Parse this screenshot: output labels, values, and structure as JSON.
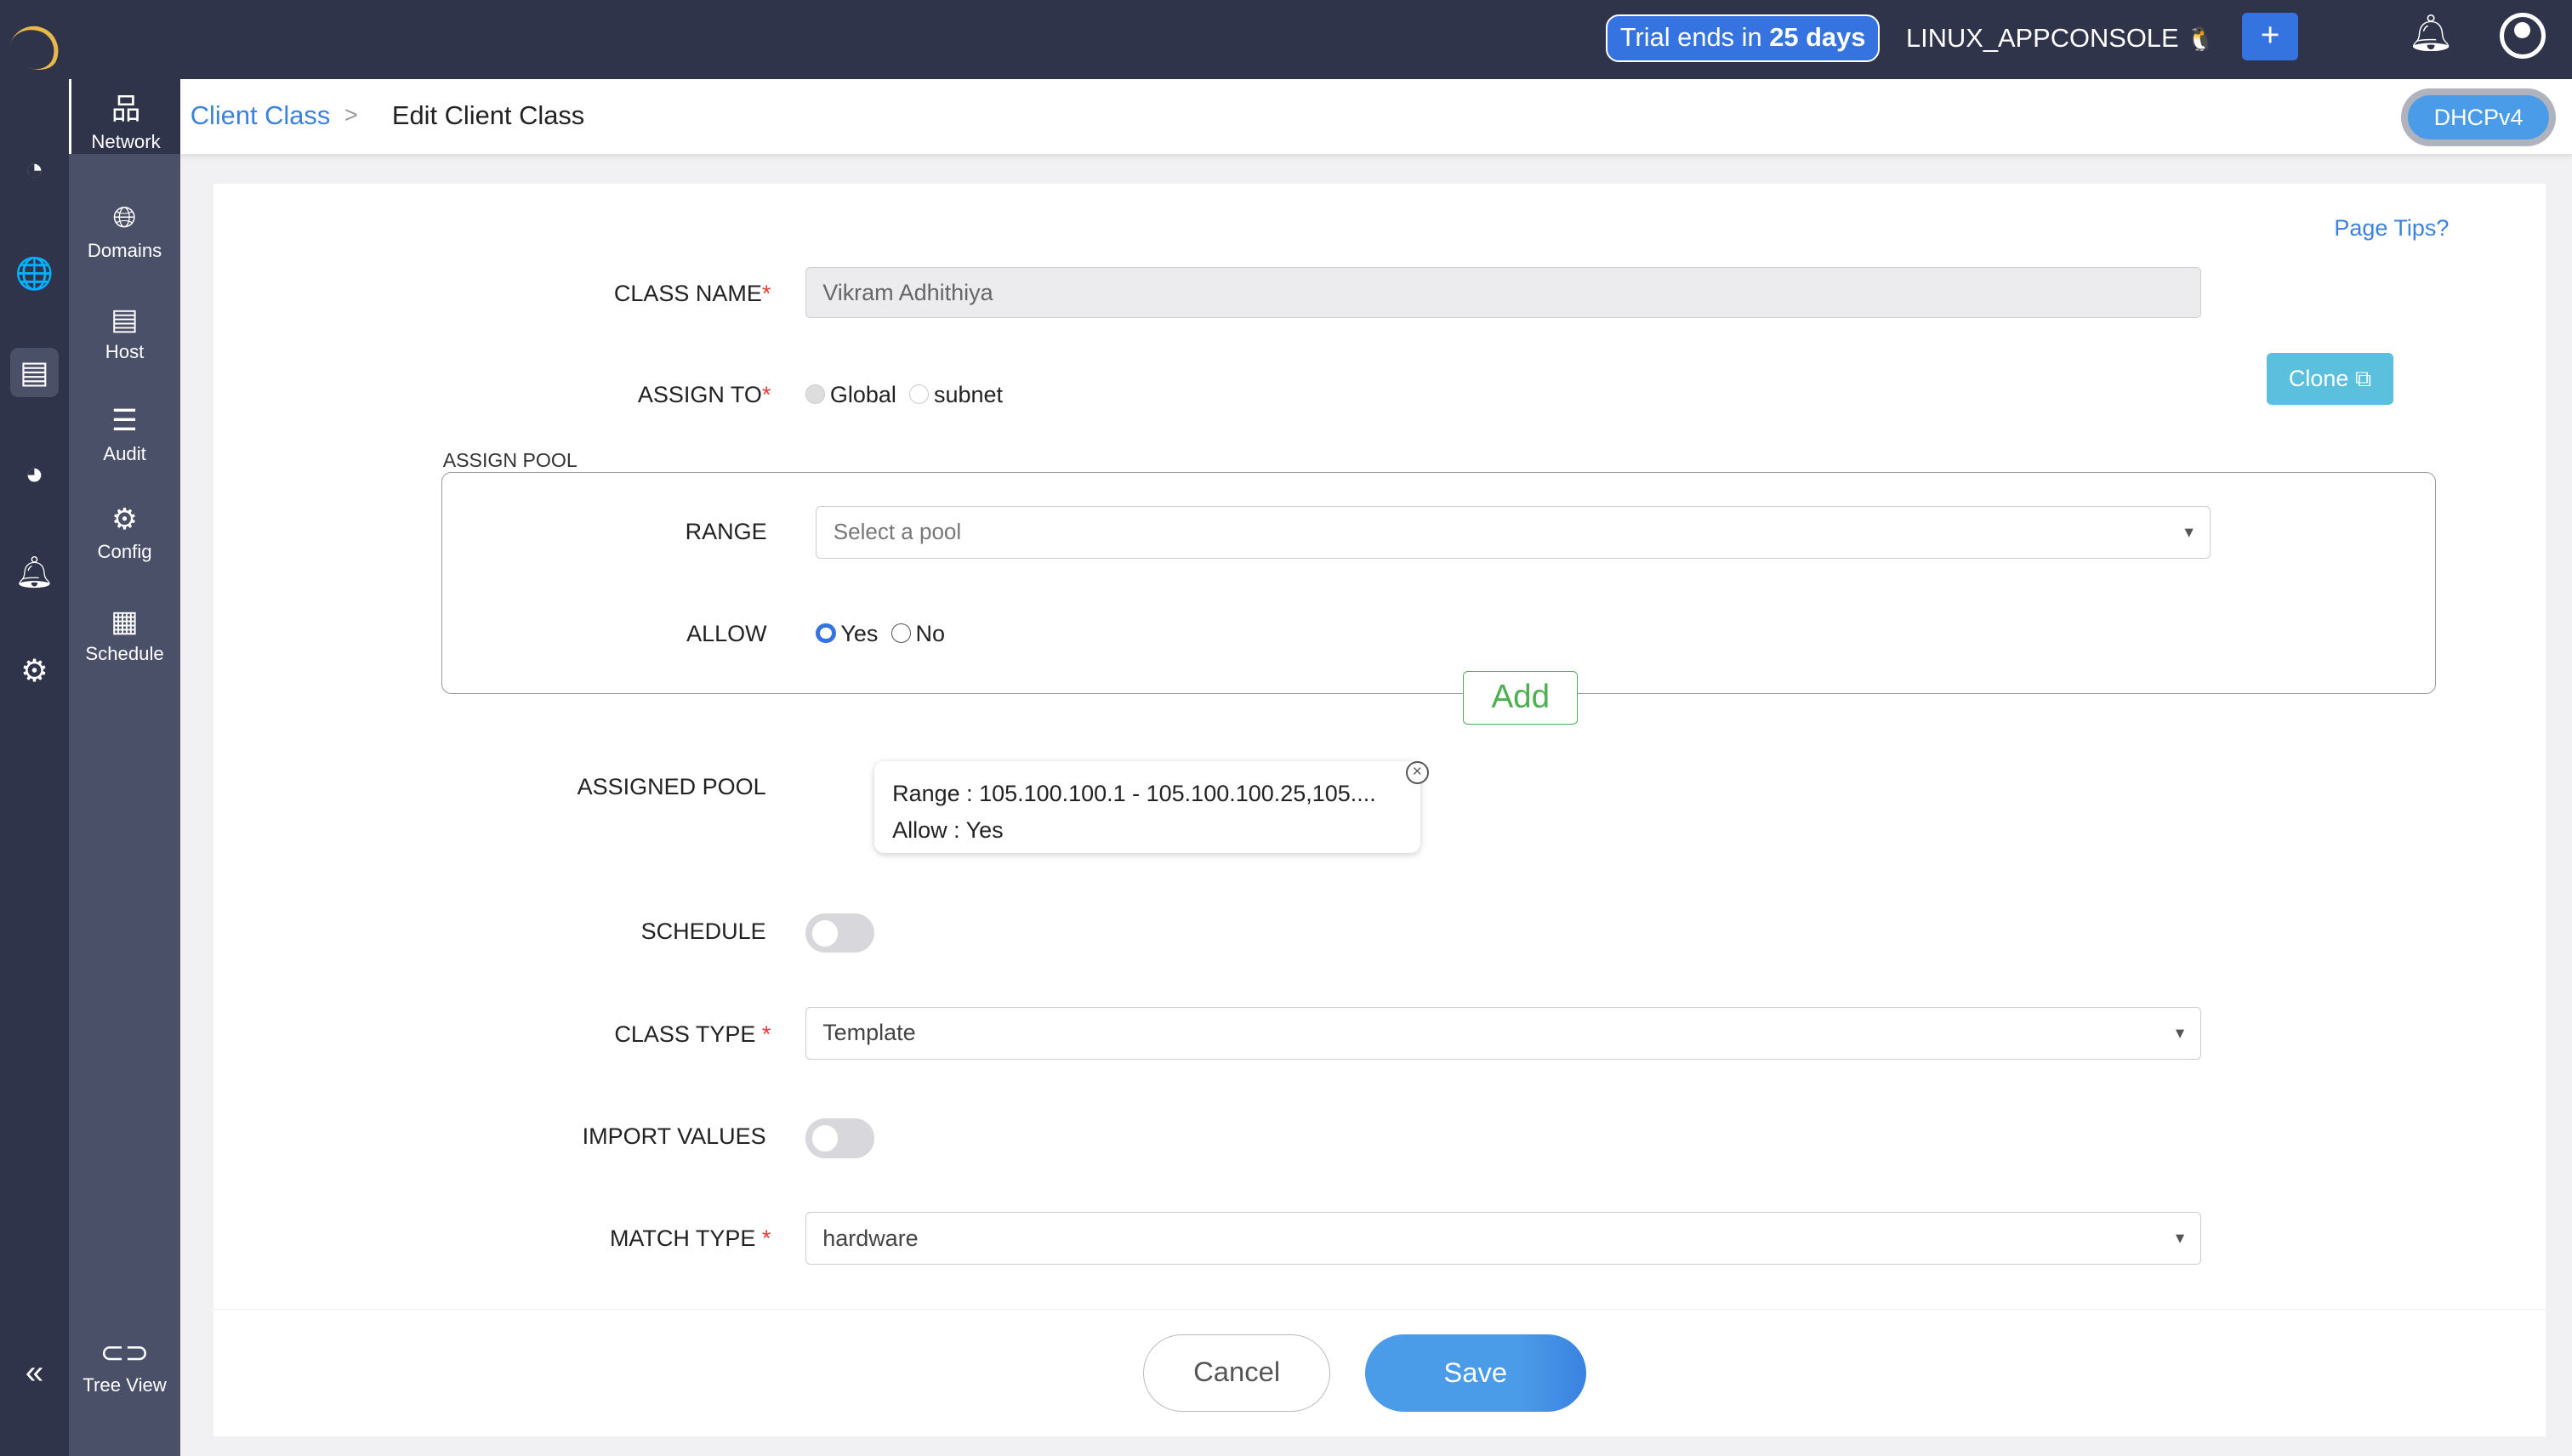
{
  "topbar": {
    "trial_text": "Trial ends in ",
    "trial_days": "25 days",
    "console_name": "LINUX_APPCONSOLE",
    "add_label": "+"
  },
  "rail": [
    "dashboard-icon",
    "dns-icon",
    "network-icon",
    "reports-icon",
    "alerts-icon",
    "settings-icon"
  ],
  "subnav": {
    "items": [
      {
        "label": "Network"
      },
      {
        "label": "Domains"
      },
      {
        "label": "Host"
      },
      {
        "label": "Audit"
      },
      {
        "label": "Config"
      },
      {
        "label": "Schedule"
      }
    ],
    "tree_view": "Tree View"
  },
  "breadcrumb": {
    "parent": "Client Class",
    "sep": ">",
    "current": "Edit Client Class"
  },
  "protocol_toggle": "DHCPv4",
  "page_tips": "Page Tips?",
  "clone_label": "Clone",
  "form": {
    "class_name": {
      "label": "CLASS NAME",
      "value": "Vikram Adhithiya"
    },
    "assign_to": {
      "label": "ASSIGN TO",
      "options": [
        "Global",
        "subnet"
      ],
      "selected": "Global"
    },
    "assign_pool": {
      "legend": "ASSIGN POOL",
      "range_label": "RANGE",
      "range_placeholder": "Select a pool",
      "allow_label": "ALLOW",
      "allow_options": [
        "Yes",
        "No"
      ],
      "allow_selected": "Yes",
      "add_label": "Add"
    },
    "assigned_pool": {
      "label": "ASSIGNED POOL",
      "range": "Range : 105.100.100.1 - 105.100.100.25,105....",
      "allow": "Allow : Yes"
    },
    "schedule": {
      "label": "SCHEDULE",
      "on": false
    },
    "class_type": {
      "label": "CLASS TYPE",
      "value": "Template"
    },
    "import_values": {
      "label": "IMPORT VALUES",
      "on": false
    },
    "match_type": {
      "label": "MATCH TYPE",
      "value": "hardware"
    }
  },
  "footer": {
    "cancel": "Cancel",
    "save": "Save"
  },
  "colors": {
    "accent": "#3b73e0",
    "save": "#4a9be8",
    "add": "#4caf50",
    "clone": "#5bc0de",
    "topbar": "#2f344b"
  }
}
